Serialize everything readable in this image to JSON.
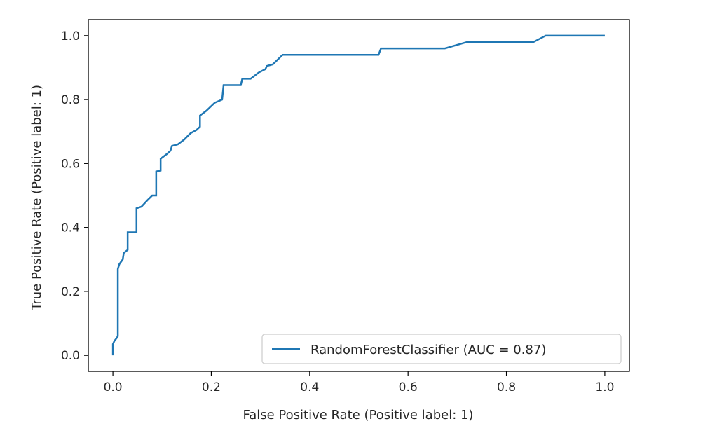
{
  "chart_data": {
    "type": "line",
    "title": "",
    "xlabel": "False Positive Rate (Positive label: 1)",
    "ylabel": "True Positive Rate (Positive label: 1)",
    "xlim": [
      -0.05,
      1.05
    ],
    "ylim": [
      -0.05,
      1.05
    ],
    "xticks": [
      0.0,
      0.2,
      0.4,
      0.6,
      0.8,
      1.0
    ],
    "xtick_labels": [
      "0.0",
      "0.2",
      "0.4",
      "0.6",
      "0.8",
      "1.0"
    ],
    "yticks": [
      0.0,
      0.2,
      0.4,
      0.6,
      0.8,
      1.0
    ],
    "ytick_labels": [
      "0.0",
      "0.2",
      "0.4",
      "0.6",
      "0.8",
      "1.0"
    ],
    "grid": false,
    "legend_position": "lower right",
    "series": [
      {
        "name": "RandomForestClassifier (AUC = 0.87)",
        "color": "#1f77b4",
        "x": [
          0.0,
          0.0,
          0.003,
          0.008,
          0.01,
          0.01,
          0.013,
          0.02,
          0.022,
          0.03,
          0.03,
          0.048,
          0.048,
          0.058,
          0.07,
          0.08,
          0.088,
          0.088,
          0.097,
          0.097,
          0.11,
          0.117,
          0.12,
          0.132,
          0.145,
          0.158,
          0.17,
          0.177,
          0.177,
          0.19,
          0.207,
          0.222,
          0.225,
          0.26,
          0.263,
          0.28,
          0.297,
          0.31,
          0.313,
          0.325,
          0.345,
          0.54,
          0.545,
          0.675,
          0.72,
          0.855,
          0.88,
          1.0
        ],
        "y": [
          0.0,
          0.035,
          0.045,
          0.055,
          0.06,
          0.27,
          0.285,
          0.3,
          0.32,
          0.33,
          0.385,
          0.385,
          0.46,
          0.465,
          0.485,
          0.5,
          0.5,
          0.575,
          0.578,
          0.615,
          0.63,
          0.64,
          0.655,
          0.66,
          0.675,
          0.695,
          0.705,
          0.715,
          0.75,
          0.765,
          0.79,
          0.8,
          0.845,
          0.845,
          0.865,
          0.865,
          0.885,
          0.895,
          0.905,
          0.91,
          0.94,
          0.94,
          0.96,
          0.96,
          0.98,
          0.98,
          1.0,
          1.0
        ]
      }
    ]
  },
  "colors": {
    "series": "#1f77b4",
    "axis": "#000000",
    "text": "#262626",
    "legend_border": "#cccccc"
  }
}
